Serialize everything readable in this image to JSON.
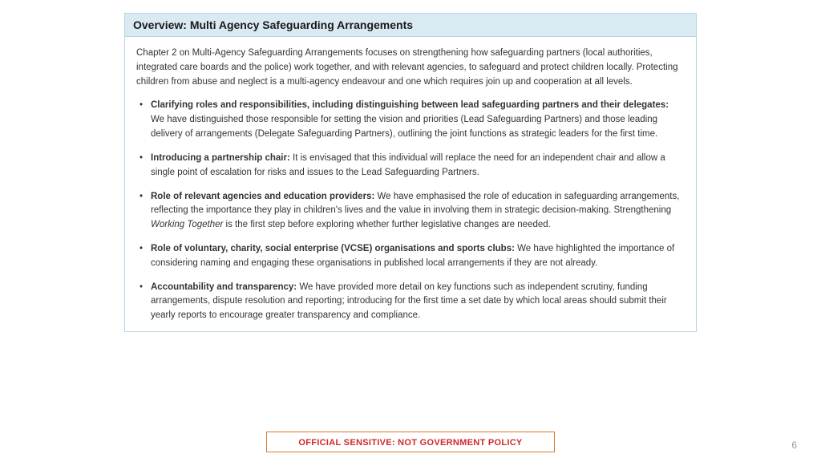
{
  "header": {
    "title": "Overview: Multi Agency Safeguarding Arrangements"
  },
  "intro": "Chapter 2 on Multi-Agency Safeguarding Arrangements focuses on strengthening how safeguarding partners (local authorities, integrated care boards and the police) work together, and with relevant agencies, to safeguard and protect children locally. Protecting children from abuse and neglect is a multi-agency endeavour and one which requires join up and cooperation at all levels.",
  "bullets": [
    {
      "lead": "Clarifying roles and responsibilities, including distinguishing between lead safeguarding partners and their delegates:",
      "rest": " We have distinguished those responsible for setting the vision and priorities (Lead Safeguarding Partners) and those leading delivery of arrangements (Delegate Safeguarding Partners), outlining the joint functions as strategic leaders for the first time."
    },
    {
      "lead": "Introducing a partnership chair:",
      "rest": " It is envisaged that this individual will replace the need for an independent chair and allow a single point of escalation for risks and issues to the Lead Safeguarding Partners."
    },
    {
      "lead": "Role of relevant agencies and education providers:",
      "rest_pre": " We have emphasised the role of education in safeguarding arrangements, reflecting the importance they play in children's lives and the value in involving them in strategic decision-making. Strengthening ",
      "italic": "Working Together",
      "rest_post": " is the first step before exploring whether further legislative changes are needed."
    },
    {
      "lead": "Role of voluntary, charity, social enterprise (VCSE) organisations and sports clubs:",
      "rest": " We have highlighted the importance of considering naming and engaging these organisations in published local arrangements if they are not already."
    },
    {
      "lead": "Accountability and transparency:",
      "rest": " We have provided more detail on key functions such as independent scrutiny, funding arrangements, dispute resolution and reporting; introducing for the first time a set date by which local areas should submit their yearly reports to encourage greater transparency and compliance."
    }
  ],
  "footer": {
    "banner": "OFFICIAL SENSITIVE: NOT GOVERNMENT POLICY",
    "page": "6"
  },
  "colors": {
    "header_bg": "#d9eaf3",
    "border": "#b8d4e3",
    "banner_border": "#d97a2e",
    "banner_text": "#d02828",
    "page_num": "#9a9a9a",
    "body_text": "#333333"
  }
}
